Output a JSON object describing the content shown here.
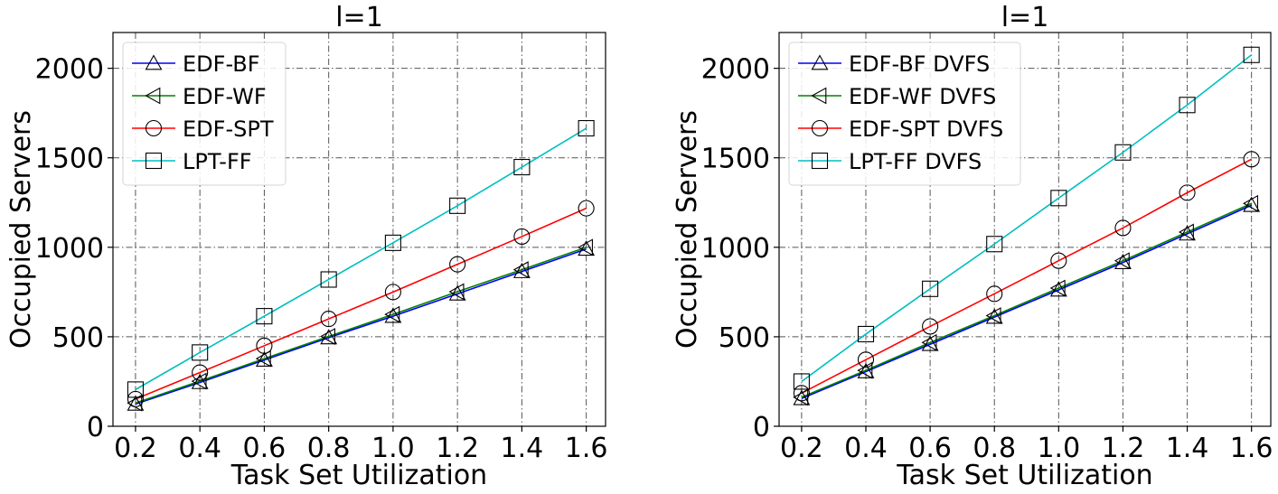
{
  "chart_data": [
    {
      "type": "line",
      "title": "l=1",
      "xlabel": "Task Set Utilization",
      "ylabel": "Occupied Servers",
      "x": [
        0.2,
        0.4,
        0.6,
        0.8,
        1.0,
        1.2,
        1.4,
        1.6
      ],
      "x_ticks": [
        "0.2",
        "0.4",
        "0.6",
        "0.8",
        "1.0",
        "1.2",
        "1.4",
        "1.6"
      ],
      "xlim": [
        0.13,
        1.66
      ],
      "ylim": [
        0,
        2200
      ],
      "y_ticks": [
        "0",
        "500",
        "1000",
        "1500",
        "2000"
      ],
      "grid": true,
      "legend_position": "upper-left",
      "series": [
        {
          "name": "EDF-BF",
          "color": "#0000ff",
          "marker": "triangle-up",
          "values": [
            124,
            245,
            370,
            495,
            615,
            740,
            865,
            990
          ]
        },
        {
          "name": "EDF-WF",
          "color": "#008000",
          "marker": "triangle-left",
          "values": [
            130,
            252,
            378,
            502,
            625,
            752,
            875,
            1000
          ]
        },
        {
          "name": "EDF-SPT",
          "color": "#ff0000",
          "marker": "circle",
          "values": [
            152,
            300,
            450,
            600,
            750,
            905,
            1060,
            1218
          ]
        },
        {
          "name": "LPT-FF",
          "color": "#00bfbf",
          "marker": "square",
          "values": [
            205,
            412,
            615,
            820,
            1025,
            1232,
            1448,
            1665
          ]
        }
      ]
    },
    {
      "type": "line",
      "title": "l=1",
      "xlabel": "Task Set Utilization",
      "ylabel": "Occupied Servers",
      "x": [
        0.2,
        0.4,
        0.6,
        0.8,
        1.0,
        1.2,
        1.4,
        1.6
      ],
      "x_ticks": [
        "0.2",
        "0.4",
        "0.6",
        "0.8",
        "1.0",
        "1.2",
        "1.4",
        "1.6"
      ],
      "xlim": [
        0.13,
        1.66
      ],
      "ylim": [
        0,
        2200
      ],
      "y_ticks": [
        "0",
        "500",
        "1000",
        "1500",
        "2000"
      ],
      "grid": true,
      "legend_position": "upper-left",
      "series": [
        {
          "name": "EDF-BF DVFS",
          "color": "#0000ff",
          "marker": "triangle-up",
          "values": [
            155,
            305,
            458,
            610,
            762,
            915,
            1075,
            1235
          ]
        },
        {
          "name": "EDF-WF DVFS",
          "color": "#008000",
          "marker": "triangle-left",
          "values": [
            162,
            312,
            468,
            618,
            772,
            925,
            1085,
            1245
          ]
        },
        {
          "name": "EDF-SPT DVFS",
          "color": "#ff0000",
          "marker": "circle",
          "values": [
            185,
            372,
            558,
            740,
            925,
            1108,
            1305,
            1492
          ]
        },
        {
          "name": "LPT-FF DVFS",
          "color": "#00bfbf",
          "marker": "square",
          "values": [
            250,
            515,
            768,
            1018,
            1275,
            1530,
            1795,
            2075
          ]
        }
      ]
    }
  ]
}
